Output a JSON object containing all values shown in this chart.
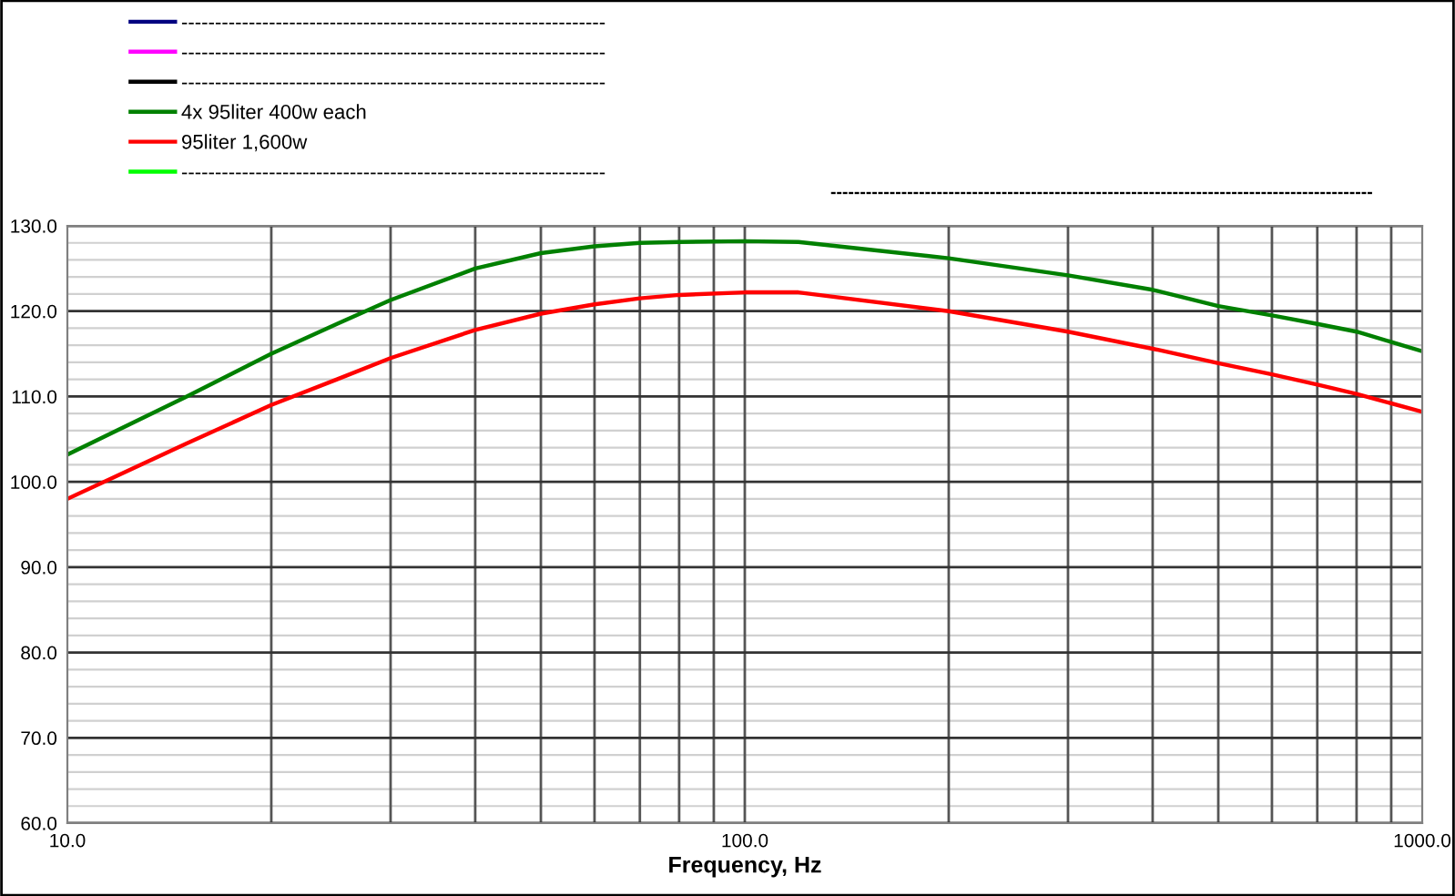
{
  "chart_data": {
    "type": "line",
    "xlabel": "Frequency, Hz",
    "xlim": [
      10,
      1000
    ],
    "xticks": [
      {
        "value": 10,
        "label": "10.0"
      },
      {
        "value": 100,
        "label": "100.0"
      },
      {
        "value": 1000,
        "label": "1000.0"
      }
    ],
    "ylim": [
      60,
      130
    ],
    "yticks": [
      {
        "value": 60,
        "label": "60.0"
      },
      {
        "value": 70,
        "label": "70.0"
      },
      {
        "value": 80,
        "label": "80.0"
      },
      {
        "value": 90,
        "label": "90.0"
      },
      {
        "value": 100,
        "label": "100.0"
      },
      {
        "value": 110,
        "label": "110.0"
      },
      {
        "value": 120,
        "label": "120.0"
      },
      {
        "value": 130,
        "label": "130.0"
      }
    ],
    "log": "x",
    "grid": true,
    "legend": "top left",
    "marker": "none",
    "line_style": "solid",
    "x": [
      10,
      15,
      20,
      25,
      30,
      40,
      50,
      60,
      70,
      80,
      100,
      120,
      200,
      300,
      400,
      500,
      600,
      700,
      800,
      1000
    ],
    "series": [
      {
        "name": "---------------------------------------------------------------",
        "color": "#000080",
        "values": [
          null,
          null,
          null,
          null,
          null,
          null,
          null,
          null,
          null,
          null,
          null,
          null,
          null,
          null,
          null,
          null,
          null,
          null,
          null,
          null
        ]
      },
      {
        "name": "---------------------------------------------------------------",
        "color": "#ff00ff",
        "values": [
          null,
          null,
          null,
          null,
          null,
          null,
          null,
          null,
          null,
          null,
          null,
          null,
          null,
          null,
          null,
          null,
          null,
          null,
          null,
          null
        ]
      },
      {
        "name": "---------------------------------------------------------------",
        "color": "#000000",
        "values": [
          null,
          null,
          null,
          null,
          null,
          null,
          null,
          null,
          null,
          null,
          null,
          null,
          null,
          null,
          null,
          null,
          null,
          null,
          null,
          null
        ]
      },
      {
        "name": "4x 95liter 400w each",
        "color": "#008000",
        "values": [
          103.2,
          110.0,
          115.0,
          118.5,
          121.3,
          125.0,
          126.8,
          127.6,
          128.0,
          128.1,
          128.2,
          128.1,
          126.2,
          124.2,
          122.5,
          120.6,
          119.5,
          118.5,
          117.6,
          115.3
        ]
      },
      {
        "name": "95liter 1,600w",
        "color": "#ff0000",
        "values": [
          98.0,
          104.5,
          109.0,
          112.0,
          114.5,
          117.8,
          119.7,
          120.8,
          121.5,
          121.9,
          122.2,
          122.2,
          120.0,
          117.6,
          115.6,
          113.9,
          112.6,
          111.4,
          110.3,
          108.2
        ]
      },
      {
        "name": "---------------------------------------------------------------",
        "color": "#00ff00",
        "values": [
          null,
          null,
          null,
          null,
          null,
          null,
          null,
          null,
          null,
          null,
          null,
          null,
          null,
          null,
          null,
          null,
          null,
          null,
          null,
          null
        ]
      }
    ],
    "annotations": [
      "--------------------------------------------------------------------------------------------"
    ]
  }
}
